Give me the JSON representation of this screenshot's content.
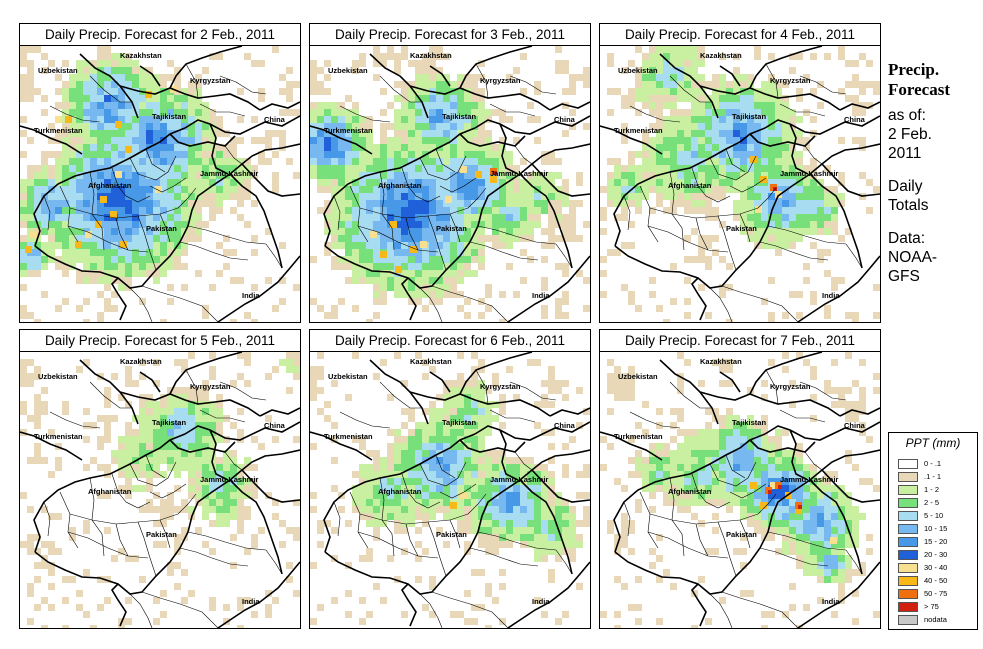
{
  "panels": [
    {
      "title": "Daily Precip. Forecast for  2 Feb., 2011",
      "date": "2 Feb."
    },
    {
      "title": "Daily Precip. Forecast for  3 Feb., 2011",
      "date": "3 Feb."
    },
    {
      "title": "Daily Precip. Forecast for  4 Feb., 2011",
      "date": "4 Feb."
    },
    {
      "title": "Daily Precip. Forecast for  5 Feb., 2011",
      "date": "5 Feb."
    },
    {
      "title": "Daily Precip. Forecast for  6 Feb., 2011",
      "date": "6 Feb."
    },
    {
      "title": "Daily Precip. Forecast for  7 Feb., 2011",
      "date": "7 Feb."
    }
  ],
  "map_labels": {
    "kazakhstan": "Kazakhstan",
    "uzbekistan": "Uzbekistan",
    "kyrgyzstan": "Kyrgyzstan",
    "tajikistan": "Tajikistan",
    "china": "China",
    "turkmenistan": "Turkmenistan",
    "afghanistan": "Afghanistan",
    "jammu_kashmir": "Jammu Kashmir",
    "pakistan": "Pakistan",
    "india": "India"
  },
  "sidebar": {
    "title_line1": "Precip.",
    "title_line2": "Forecast",
    "asof_line1": "as of:",
    "asof_line2": "2 Feb.",
    "asof_line3": "2011",
    "totals_line1": "Daily",
    "totals_line2": "Totals",
    "data_line1": "Data:",
    "data_line2": "NOAA-",
    "data_line3": "GFS"
  },
  "legend": {
    "title": "PPT (mm)",
    "items": [
      {
        "label": "0 - .1",
        "color": "#ffffff"
      },
      {
        "label": ".1 - 1",
        "color": "#e8d8b8"
      },
      {
        "label": "1 - 2",
        "color": "#c8f0a0"
      },
      {
        "label": "2 - 5",
        "color": "#78e07a"
      },
      {
        "label": "5 - 10",
        "color": "#a8dcf0"
      },
      {
        "label": "10 - 15",
        "color": "#78b8f0"
      },
      {
        "label": "15 - 20",
        "color": "#4898e8"
      },
      {
        "label": "20 - 30",
        "color": "#2060d8"
      },
      {
        "label": "30 - 40",
        "color": "#f8e090"
      },
      {
        "label": "40 - 50",
        "color": "#f8b818"
      },
      {
        "label": "50 - 75",
        "color": "#f07010"
      },
      {
        "label": "> 75",
        "color": "#d02010"
      },
      {
        "label": "nodata",
        "color": "#c8c8c8"
      }
    ]
  }
}
